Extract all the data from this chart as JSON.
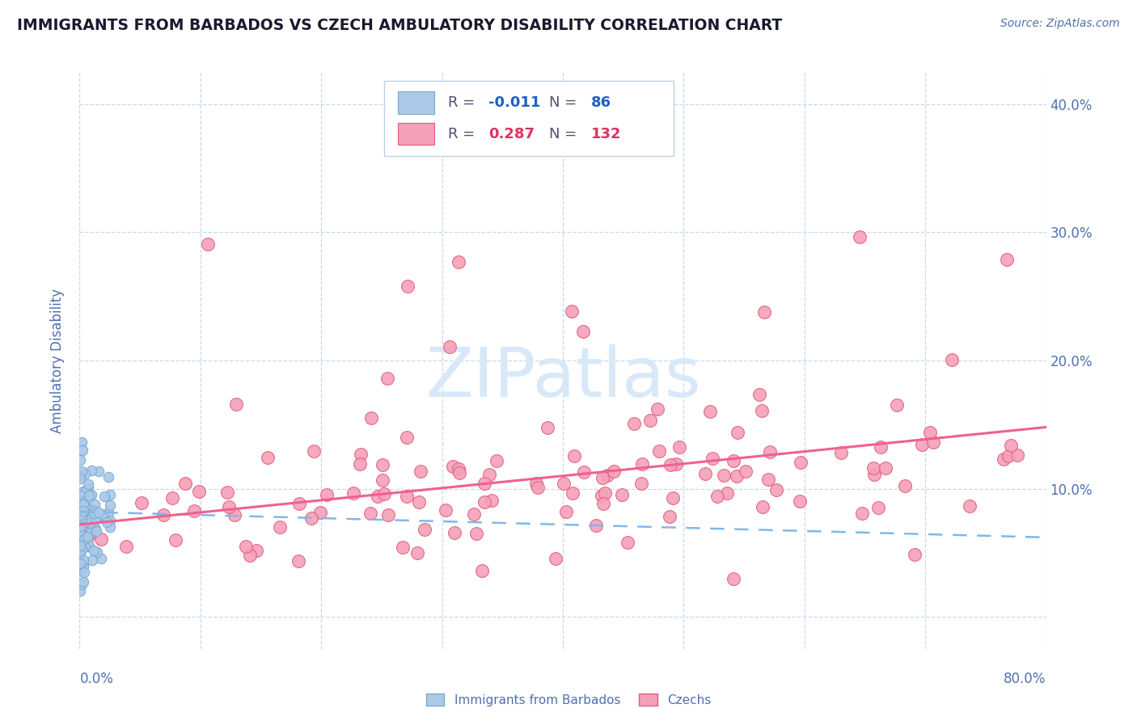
{
  "title": "IMMIGRANTS FROM BARBADOS VS CZECH AMBULATORY DISABILITY CORRELATION CHART",
  "source": "Source: ZipAtlas.com",
  "ylabel": "Ambulatory Disability",
  "series1_label": "Immigrants from Barbados",
  "series1_R": "-0.011",
  "series1_N": 86,
  "series1_color": "#aac8e8",
  "series1_edge_color": "#7aaad0",
  "series2_label": "Czechs",
  "series2_R": "0.287",
  "series2_N": 132,
  "series2_color": "#f5a0b8",
  "series2_edge_color": "#e06080",
  "trendline1_color": "#80b8e8",
  "trendline2_color": "#f06090",
  "background_color": "#ffffff",
  "grid_color": "#c8d8ee",
  "title_color": "#1a1a2e",
  "axis_label_color": "#5070b0",
  "xlim": [
    0.0,
    0.8
  ],
  "ylim": [
    -0.025,
    0.425
  ],
  "r1_color": "#2060c0",
  "r2_color": "#e03060",
  "watermark": "ZIPatlas",
  "watermark_color": "#d8e8f8"
}
